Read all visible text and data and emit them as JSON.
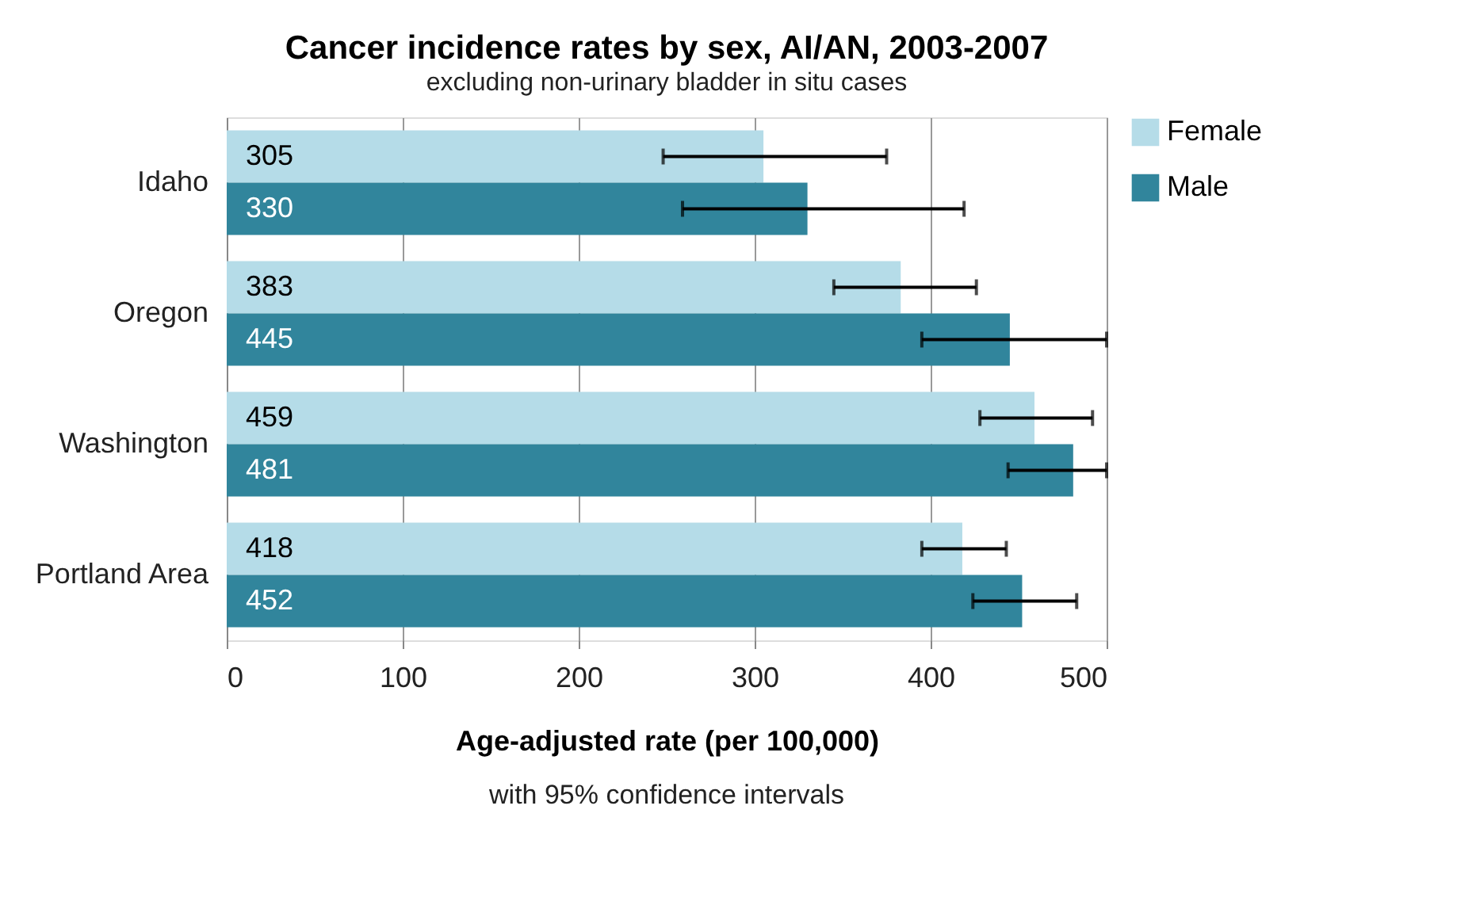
{
  "chart_data": {
    "type": "bar",
    "orientation": "horizontal",
    "title": "Cancer incidence rates by sex, AI/AN, 2003-2007",
    "subtitle": "excluding non-urinary bladder in situ cases",
    "xlabel": "Age-adjusted rate (per 100,000)",
    "annotations": [
      "with 95% confidence intervals"
    ],
    "categories": [
      "Idaho",
      "Oregon",
      "Washington",
      "Portland Area"
    ],
    "series": [
      {
        "name": "Female",
        "color": "#b5dce8",
        "values": [
          305,
          383,
          459,
          418
        ],
        "errors": [
          [
            248,
            375
          ],
          [
            345,
            426
          ],
          [
            428,
            492
          ],
          [
            395,
            443
          ]
        ]
      },
      {
        "name": "Male",
        "color": "#31859c",
        "values": [
          330,
          445,
          481,
          452
        ],
        "errors": [
          [
            259,
            419
          ],
          [
            395,
            500
          ],
          [
            444,
            500
          ],
          [
            424,
            483
          ]
        ]
      }
    ],
    "xlim": [
      0,
      500
    ],
    "xticks": [
      0,
      100,
      200,
      300,
      400,
      500
    ],
    "grid": "x",
    "legend": "right",
    "data_labels": true
  }
}
